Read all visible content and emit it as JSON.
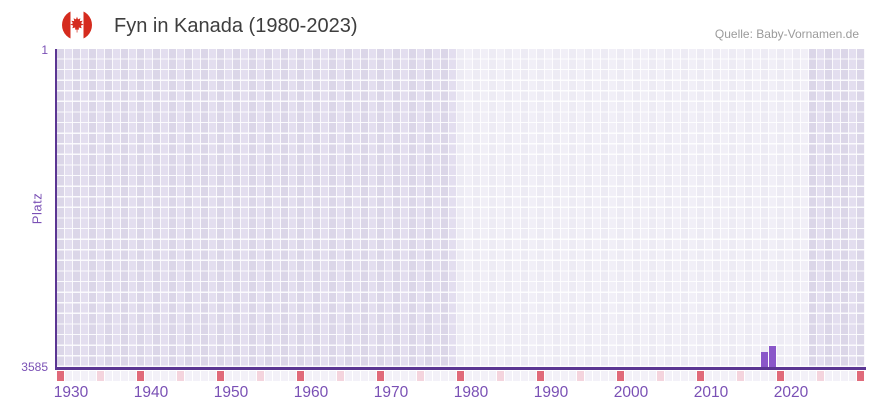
{
  "header": {
    "title": "Fyn in Kanada (1980-2023)",
    "source": "Quelle: Baby-Vornamen.de",
    "flag_icon": "canada-flag-icon"
  },
  "chart_data": {
    "type": "bar",
    "title": "Fyn in Kanada (1980-2023)",
    "xlabel": "",
    "ylabel": "Platz",
    "y_axis": {
      "top_tick_label": "1",
      "bottom_tick_label": "3585",
      "min": 1,
      "max": 3585,
      "inverted": true,
      "grid": true
    },
    "x_axis": {
      "min_year": 1929,
      "max_year": 2029,
      "tick_label_years": [
        1930,
        1940,
        1950,
        1960,
        1970,
        1980,
        1990,
        2000,
        2010,
        2020
      ],
      "tick_labels": [
        "1930",
        "1940",
        "1950",
        "1960",
        "1970",
        "1980",
        "1990",
        "2000",
        "2010",
        "2020"
      ]
    },
    "series": [
      {
        "name": "Platz",
        "points": [
          {
            "year": 2017,
            "rank": 3416
          },
          {
            "year": 2018,
            "rank": 3348
          }
        ]
      }
    ],
    "highlight_period": {
      "from": 1979,
      "to": 2022
    },
    "bottom_markers": {
      "red_years": [
        1929,
        1939,
        1949,
        1959,
        1969,
        1979,
        1989,
        1999,
        2009,
        2019,
        2029
      ],
      "pink_years": [
        1934,
        1944,
        1954,
        1964,
        1974,
        1984,
        1994,
        2004,
        2014,
        2024
      ]
    },
    "colors": {
      "bar": "#8a57c9",
      "axis_line": "#5b3693",
      "axis_text": "#7a50b5",
      "marker_red": "#e06a7a",
      "marker_pink": "#f4d4dd",
      "grid_cell_dark": "#dbd6e8",
      "grid_cell_light": "#e3deef",
      "flag_red": "#d52b1e",
      "title_text": "#3e3e3e",
      "source_text": "#9b9b9b"
    }
  }
}
